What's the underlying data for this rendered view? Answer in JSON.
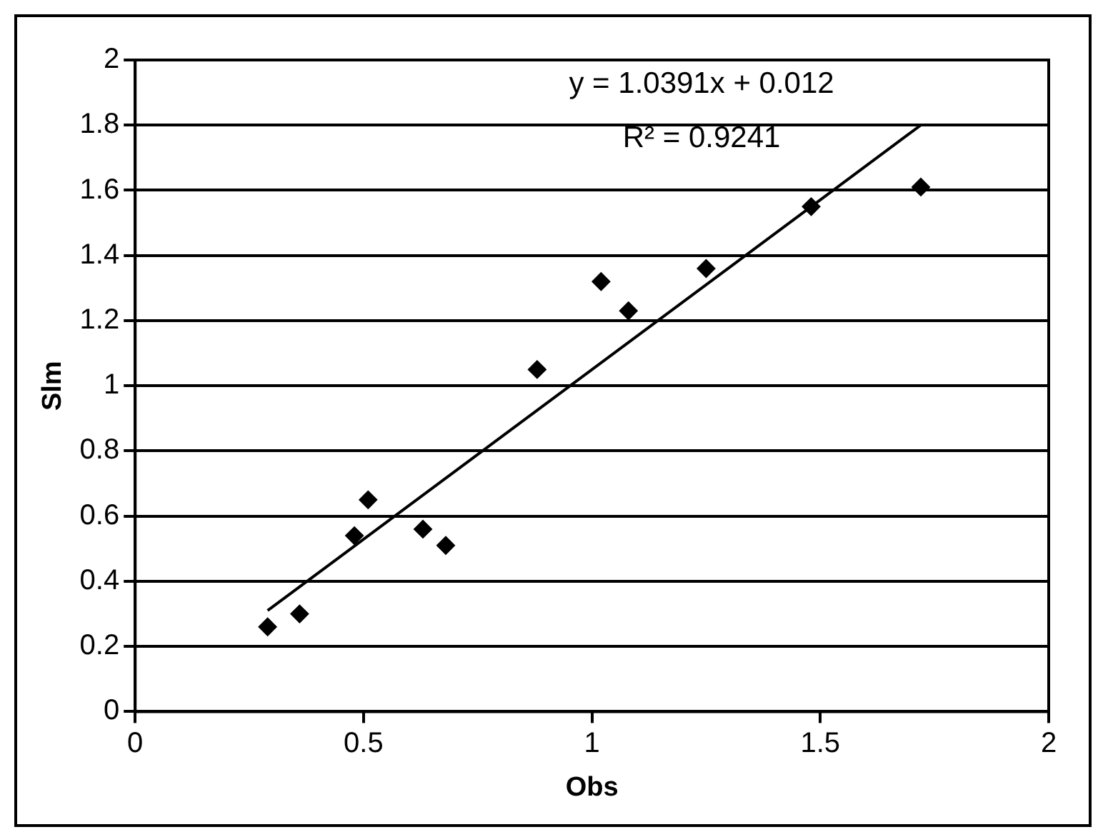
{
  "chart_data": {
    "type": "scatter",
    "xlabel": "Obs",
    "ylabel": "Slm",
    "annotations": [
      "y = 1.0391x + 0.012",
      "R² = 0.9241"
    ],
    "series": [
      {
        "type": "scatter",
        "color": "#000000",
        "marker": "diamond",
        "x": [
          0.29,
          0.36,
          0.48,
          0.51,
          0.63,
          0.68,
          0.88,
          1.02,
          1.08,
          1.25,
          1.48,
          1.72
        ],
        "values": [
          0.26,
          0.3,
          0.54,
          0.65,
          0.56,
          0.51,
          1.05,
          1.32,
          1.23,
          1.36,
          1.55,
          1.61
        ]
      },
      {
        "type": "line",
        "color": "#000000",
        "marker": "none",
        "line_style": "solid",
        "x": [
          0.29,
          1.72
        ],
        "values": [
          0.31,
          1.8
        ]
      }
    ],
    "xlim": [
      0,
      2
    ],
    "xticks": [
      0,
      0.5,
      1,
      1.5,
      2
    ],
    "ylim": [
      0,
      2
    ],
    "yticks": [
      0,
      0.2,
      0.4,
      0.6,
      0.8,
      1,
      1.2,
      1.4,
      1.6,
      1.8,
      2
    ],
    "grid": "y",
    "legend": false
  }
}
